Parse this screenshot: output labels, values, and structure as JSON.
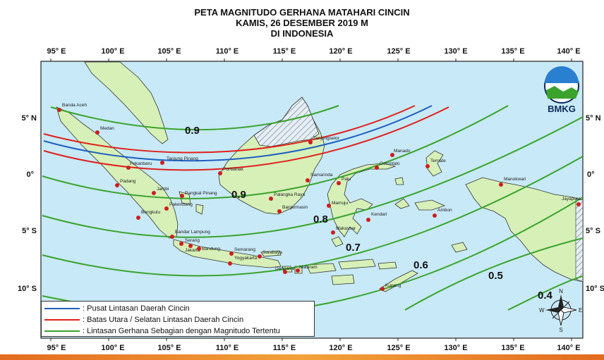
{
  "title": {
    "line1": "PETA MAGNITUDO GERHANA MATAHARI CINCIN",
    "line2": "KAMIS, 26 DESEMBER 2019 M",
    "line3": "DI INDONESIA"
  },
  "axes": {
    "lon_labels": [
      "95° E",
      "100° E",
      "105° E",
      "110° E",
      "115° E",
      "120° E",
      "125° E",
      "130° E",
      "135° E",
      "140° E"
    ],
    "lat_labels": [
      "5° N",
      "0°",
      "5° S",
      "10° S"
    ]
  },
  "logo": {
    "text": "BMKG"
  },
  "magnitudes": [
    "0.9",
    "0.9",
    "0.8",
    "0.7",
    "0.6",
    "0.5",
    "0.4"
  ],
  "cities": [
    "Banda Aceh",
    "Medan",
    "Tanjung Pinang",
    "Pekanbaru",
    "Padang",
    "Jambi",
    "Pangkal Pinang",
    "Palembang",
    "Bengkulu",
    "Bandar Lampung",
    "Serang",
    "Jakarta",
    "Bandung",
    "Semarang",
    "Yogyakarta",
    "Surabaya",
    "Denpasar",
    "Mataram",
    "Kupang",
    "Pontianak",
    "Palangka Raya",
    "Banjarmasin",
    "Samarinda",
    "Tanjungselor",
    "Palu",
    "Mamuju",
    "Makassar",
    "Kendari",
    "Gorontalo",
    "Manado",
    "Ternate",
    "Ambon",
    "Manokwari",
    "Jayapura"
  ],
  "legend": {
    "items": [
      {
        "label": ": Pusat Lintasan Daerah Cincin",
        "color": "#1f5fbf"
      },
      {
        "label": ": Batas Utara / Selatan Lintasan Daerah Cincin",
        "color": "#e0201b"
      },
      {
        "label": ": Lintasan Gerhana Sebagian dengan Magnitudo Tertentu",
        "color": "#3aa32b"
      }
    ]
  },
  "compass": {
    "n": "N",
    "s": "S",
    "e": "E",
    "w": "W"
  },
  "colors": {
    "sea": "#c8e9f7",
    "land": "#d6f0b8",
    "coast": "#333333",
    "center": "#1f5fbf",
    "limit": "#e0201b",
    "magnitude": "#3aa32b",
    "city": "#cc1f1f"
  }
}
